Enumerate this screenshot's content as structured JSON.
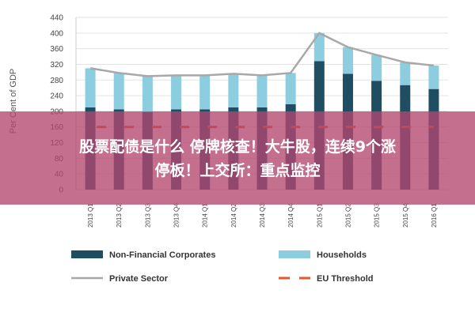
{
  "chart_data": {
    "type": "bar",
    "ylabel": "Per Cent of GDP",
    "ylim": [
      0,
      440
    ],
    "yticks": [
      0,
      40,
      80,
      120,
      160,
      200,
      240,
      280,
      320,
      360,
      400,
      440
    ],
    "grid": true,
    "categories": [
      "2013 Q1",
      "2013 Q2",
      "2013 Q3",
      "2013 Q4",
      "2014 Q1",
      "2014 Q2",
      "2014 Q3",
      "2014 Q4",
      "2015 Q1",
      "2015 Q2",
      "2015 Q3",
      "2015 Q4",
      "2016 Q1"
    ],
    "stacked": true,
    "series": [
      {
        "name": "Non-Financial Corporates",
        "type": "bar",
        "color": "#1f4e63",
        "values": [
          210,
          205,
          198,
          205,
          205,
          210,
          210,
          218,
          328,
          296,
          278,
          267,
          257
        ]
      },
      {
        "name": "Households",
        "type": "bar",
        "color": "#8ccde0",
        "values": [
          100,
          93,
          92,
          87,
          87,
          86,
          82,
          80,
          72,
          68,
          66,
          58,
          60
        ]
      },
      {
        "name": "Private Sector",
        "type": "line",
        "color": "#a8a8a8",
        "values": [
          310,
          298,
          290,
          292,
          292,
          296,
          292,
          298,
          400,
          364,
          344,
          325,
          317
        ]
      },
      {
        "name": "EU Threshold",
        "type": "line",
        "style": "dashed",
        "color": "#e8552a",
        "values": [
          160,
          160,
          160,
          160,
          160,
          160,
          160,
          160,
          160,
          160,
          160,
          160,
          160
        ]
      }
    ],
    "legend_position": "bottom"
  },
  "overlay": {
    "line1": "股票配债是什么 停牌核查！大牛股，连续9个涨",
    "line2": "停板！上交所：重点监控"
  }
}
